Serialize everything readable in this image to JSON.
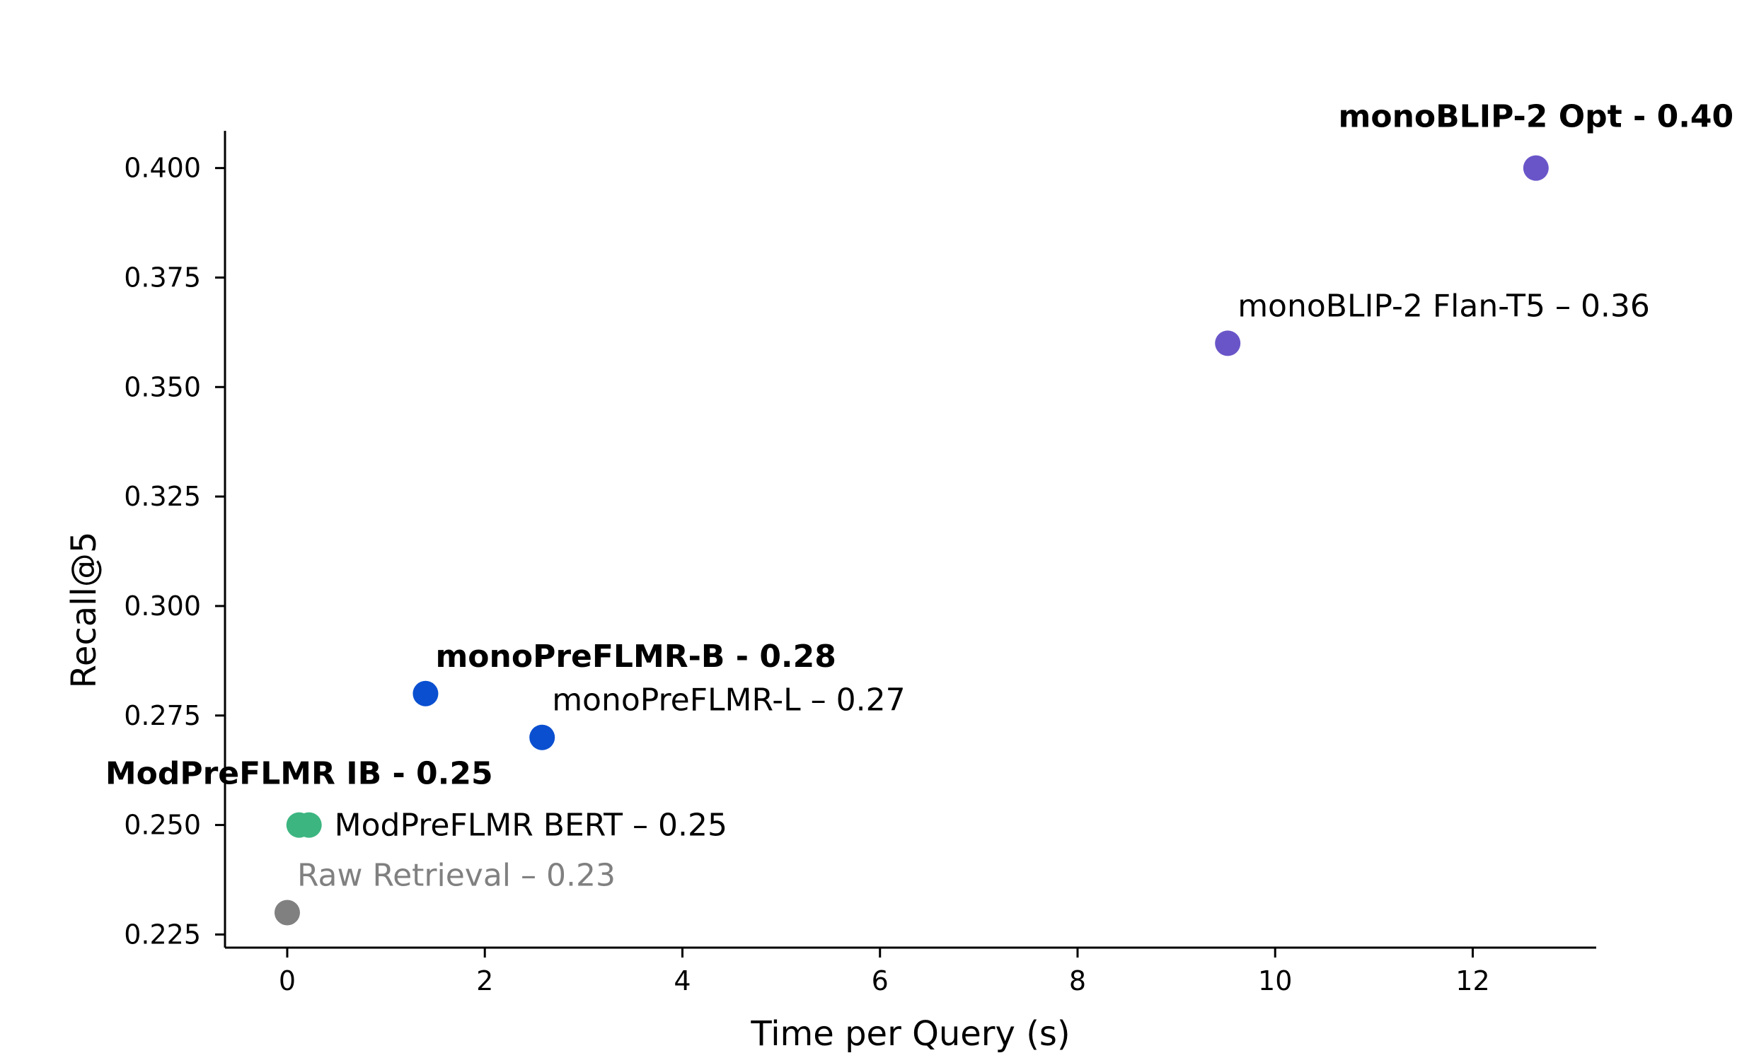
{
  "chart_data": {
    "type": "scatter",
    "title": "",
    "xlabel": "Time per Query (s)",
    "ylabel": "Recall@5",
    "xlim": [
      -0.63,
      13.25
    ],
    "ylim": [
      0.222,
      0.4085
    ],
    "xticks": [
      0,
      2,
      4,
      6,
      8,
      10,
      12
    ],
    "xtick_labels": [
      "0",
      "2",
      "4",
      "6",
      "8",
      "10",
      "12"
    ],
    "yticks": [
      0.225,
      0.25,
      0.275,
      0.3,
      0.325,
      0.35,
      0.375,
      0.4
    ],
    "ytick_labels": [
      "0.225",
      "0.250",
      "0.275",
      "0.300",
      "0.325",
      "0.350",
      "0.375",
      "0.400"
    ],
    "grid": false,
    "points": [
      {
        "label": "Raw Retrieval – 0.23",
        "x": 0.0,
        "y": 0.23,
        "color": "#808080",
        "label_color": "#808080",
        "bold": false,
        "label_pos": "above-right"
      },
      {
        "label": "ModPreFLMR IB - 0.25",
        "x": 0.12,
        "y": 0.25,
        "color": "#3cb580",
        "label_color": "#000000",
        "bold": true,
        "label_pos": "above-left"
      },
      {
        "label": "ModPreFLMR BERT – 0.25",
        "x": 0.22,
        "y": 0.25,
        "color": "#3cb580",
        "label_color": "#000000",
        "bold": false,
        "label_pos": "right"
      },
      {
        "label": "monoPreFLMR-B - 0.28",
        "x": 1.4,
        "y": 0.28,
        "color": "#0a4fd0",
        "label_color": "#000000",
        "bold": true,
        "label_pos": "above-right"
      },
      {
        "label": "monoPreFLMR-L – 0.27",
        "x": 2.58,
        "y": 0.27,
        "color": "#0a4fd0",
        "label_color": "#000000",
        "bold": false,
        "label_pos": "above-right"
      },
      {
        "label": "monoBLIP-2 Flan-T5 – 0.36",
        "x": 9.52,
        "y": 0.36,
        "color": "#6a55c8",
        "label_color": "#000000",
        "bold": false,
        "label_pos": "above-right"
      },
      {
        "label": "monoBLIP-2 Opt - 0.40",
        "x": 12.64,
        "y": 0.4,
        "color": "#6a55c8",
        "label_color": "#000000",
        "bold": true,
        "label_pos": "above-left"
      }
    ]
  }
}
